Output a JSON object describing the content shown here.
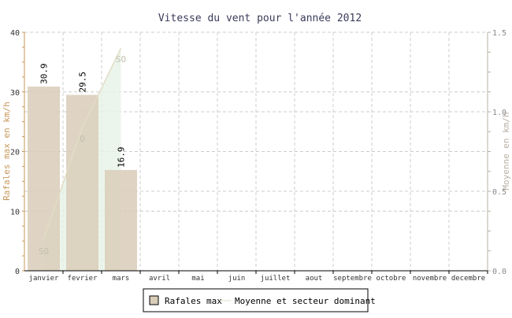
{
  "chart_data": {
    "type": "bar",
    "title": "Vitesse du vent pour l'année 2012",
    "categories": [
      "janvier",
      "fevrier",
      "mars",
      "avril",
      "mai",
      "juin",
      "juillet",
      "aout",
      "septembre",
      "octobre",
      "novembre",
      "decembre"
    ],
    "ylabel": "Rafales max en km/h",
    "y2label": "Moyenne en km/h",
    "ylim": [
      0,
      40
    ],
    "y2lim": [
      0,
      1.5
    ],
    "yticks": [
      "0",
      "10",
      "20",
      "30",
      "40"
    ],
    "y2ticks": [
      "0.0",
      "0.5",
      "1.0",
      "1.5"
    ],
    "grid": true,
    "legend_position": "bottom",
    "series": [
      {
        "name": "Rafales max",
        "type": "bar",
        "axis": "left",
        "color": "#d9cdb9",
        "values": [
          30.9,
          29.5,
          16.9,
          null,
          null,
          null,
          null,
          null,
          null,
          null,
          null,
          null
        ],
        "labels": [
          "30.9",
          "29.5",
          "16.9"
        ]
      },
      {
        "name": "Moyenne et secteur dominant",
        "type": "line",
        "axis": "right",
        "color": "#e2dcc4",
        "fill": "#e6f2e6",
        "values": [
          0.2,
          0.9,
          1.4,
          null,
          null,
          null,
          null,
          null,
          null,
          null,
          null,
          null
        ],
        "labels": [
          "SO",
          "O",
          "SO"
        ]
      }
    ]
  }
}
